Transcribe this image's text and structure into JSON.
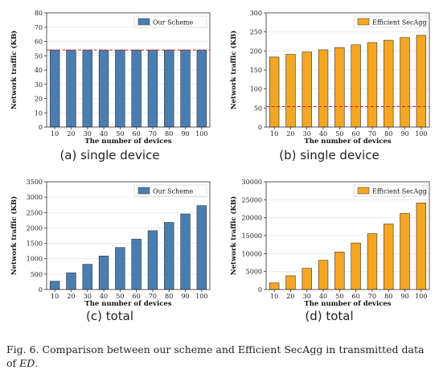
{
  "colors": {
    "blue": "#4a7eb0",
    "orange": "#f5a623",
    "ref": "#cc2222",
    "grid": "#e8e8e8"
  },
  "chart_data": [
    {
      "id": "a",
      "type": "bar",
      "categories": [
        "10",
        "20",
        "30",
        "40",
        "50",
        "60",
        "70",
        "80",
        "90",
        "100"
      ],
      "series": [
        {
          "name": "Our Scheme",
          "values": [
            54,
            54,
            54,
            54,
            54,
            54,
            54,
            54,
            54,
            54
          ]
        }
      ],
      "ref_line": 54,
      "xlabel": "The number of devices",
      "ylabel": "Network traffic (KB)",
      "ylim": [
        0,
        80
      ],
      "yticks": [
        0,
        10,
        20,
        30,
        40,
        50,
        60,
        70,
        80
      ],
      "legend": "top-right",
      "grid": true,
      "subcaption": "(a)  single device"
    },
    {
      "id": "b",
      "type": "bar",
      "categories": [
        "10",
        "20",
        "30",
        "40",
        "50",
        "60",
        "70",
        "80",
        "90",
        "100"
      ],
      "series": [
        {
          "name": "Efficient SecAgg",
          "values": [
            184,
            191,
            197,
            203,
            209,
            216,
            222,
            228,
            235,
            241
          ]
        }
      ],
      "ref_line": 54,
      "xlabel": "The number of devices",
      "ylabel": "Network traffic (KB)",
      "ylim": [
        0,
        300
      ],
      "yticks": [
        0,
        50,
        100,
        150,
        200,
        250,
        300
      ],
      "legend": "top-right",
      "grid": true,
      "subcaption": "(b)  single device"
    },
    {
      "id": "c",
      "type": "bar",
      "categories": [
        "10",
        "20",
        "30",
        "40",
        "50",
        "60",
        "70",
        "80",
        "90",
        "100"
      ],
      "series": [
        {
          "name": "Our Scheme",
          "values": [
            270,
            545,
            820,
            1090,
            1365,
            1635,
            1910,
            2180,
            2455,
            2725
          ]
        }
      ],
      "xlabel": "The number of devices",
      "ylabel": "Network traffic (KB)",
      "ylim": [
        0,
        3500
      ],
      "yticks": [
        0,
        500,
        1000,
        1500,
        2000,
        2500,
        3000,
        3500
      ],
      "legend": "top-right",
      "grid": true,
      "subcaption": "(c)  total"
    },
    {
      "id": "d",
      "type": "bar",
      "categories": [
        "10",
        "20",
        "30",
        "40",
        "50",
        "60",
        "70",
        "80",
        "90",
        "100"
      ],
      "series": [
        {
          "name": "Efficient SecAgg",
          "values": [
            1840,
            3820,
            5910,
            8120,
            10450,
            12960,
            15540,
            18240,
            21150,
            24100
          ]
        }
      ],
      "xlabel": "The number of devices",
      "ylabel": "Network traffic (KB)",
      "ylim": [
        0,
        30000
      ],
      "yticks": [
        0,
        5000,
        10000,
        15000,
        20000,
        25000,
        30000
      ],
      "legend": "top-right",
      "grid": true,
      "subcaption": "(d)  total"
    }
  ],
  "caption": {
    "prefix": "Fig. 6.   Comparison between our scheme and Efficient SecAgg in transmitted data of ",
    "math": "ED",
    "suffix": "."
  }
}
